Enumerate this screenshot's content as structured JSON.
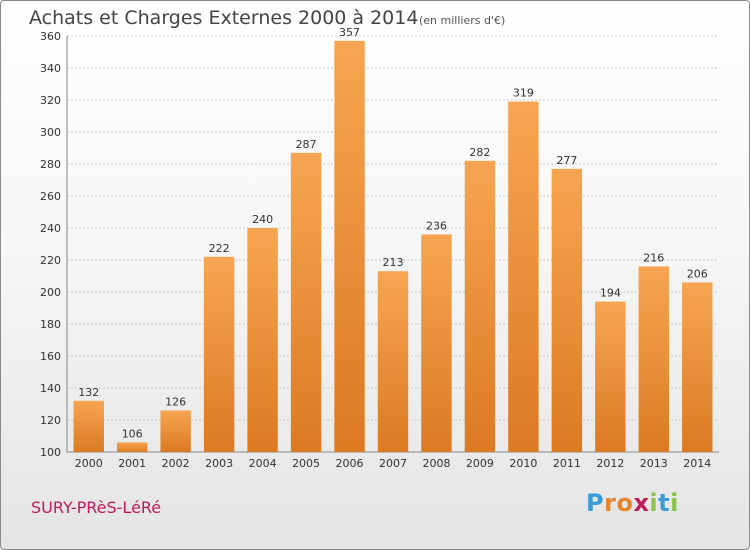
{
  "chart_data": {
    "type": "bar",
    "title": "Achats et Charges Externes 2000 à 2014",
    "subtitle": "(en milliers d'€)",
    "categories": [
      "2000",
      "2001",
      "2002",
      "2003",
      "2004",
      "2005",
      "2006",
      "2007",
      "2008",
      "2009",
      "2010",
      "2011",
      "2012",
      "2013",
      "2014"
    ],
    "values": [
      132,
      106,
      126,
      222,
      240,
      287,
      357,
      213,
      236,
      282,
      319,
      277,
      194,
      216,
      206
    ],
    "ylim": [
      100,
      360
    ],
    "yticks": [
      100,
      120,
      140,
      160,
      180,
      200,
      220,
      240,
      260,
      280,
      300,
      320,
      340,
      360
    ],
    "grid": true,
    "bar_color_top": "#f6a552",
    "bar_color_bottom": "#dc7a22"
  },
  "footer": {
    "commune": "SURY-PRèS-LéRé",
    "logo_letters": [
      "P",
      "r",
      "o",
      "x",
      "i",
      "t",
      "i"
    ],
    "logo_colors": [
      "#3b9bd6",
      "#e8832a",
      "#e8832a",
      "#c2185b",
      "#8bc34a",
      "#3b9bd6",
      "#8bc34a"
    ]
  }
}
